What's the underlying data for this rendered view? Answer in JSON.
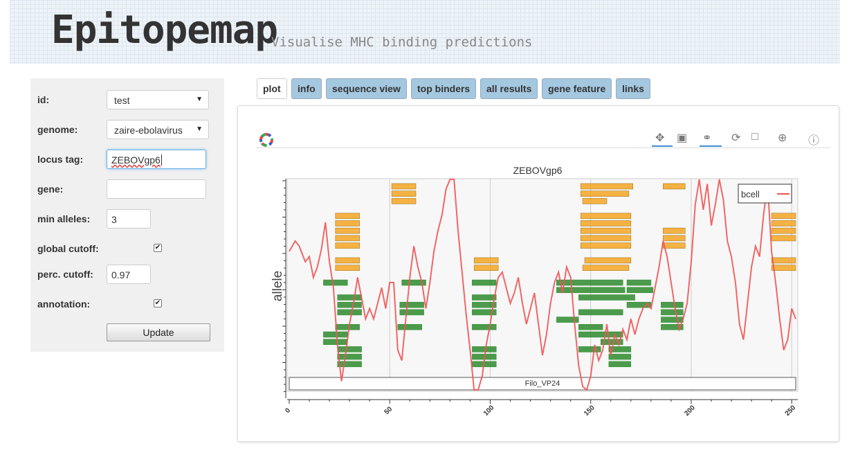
{
  "header": {
    "title": "Epitopemap",
    "subtitle": "Visualise MHC binding predictions"
  },
  "form": {
    "id_label": "id:",
    "id_value": "test",
    "genome_label": "genome:",
    "genome_value": "zaire-ebolavirus",
    "locus_label": "locus tag:",
    "locus_value": "ZEBOVgp6",
    "gene_label": "gene:",
    "gene_value": "",
    "min_alleles_label": "min alleles:",
    "min_alleles_value": "3",
    "global_cutoff_label": "global cutoff:",
    "global_cutoff_checked": true,
    "perc_cutoff_label": "perc. cutoff:",
    "perc_cutoff_value": "0.97",
    "annotation_label": "annotation:",
    "annotation_checked": true,
    "update_label": "Update"
  },
  "tabs": [
    {
      "label": "plot",
      "active": true
    },
    {
      "label": "info",
      "active": false
    },
    {
      "label": "sequence view",
      "active": false
    },
    {
      "label": "top binders",
      "active": false
    },
    {
      "label": "all results",
      "active": false
    },
    {
      "label": "gene feature",
      "active": false
    },
    {
      "label": "links",
      "active": false
    }
  ],
  "toolbar": {
    "icons": [
      "pan-icon",
      "box-zoom-icon",
      "wheel-zoom-icon",
      "reset-icon",
      "save-icon",
      "crosshair-icon",
      "help-icon"
    ],
    "active_icons": [
      "pan-icon",
      "wheel-zoom-icon"
    ]
  },
  "colors": {
    "banner": "#eef3f8",
    "tab_bg": "#a5c8e1",
    "binder_orange": "#f5a623",
    "binder_green": "#2e8b2e",
    "line_red": "#ee5555"
  },
  "chart_data": {
    "type": "line",
    "title": "ZEBOVgp6",
    "xlabel": "",
    "ylabel": "allele",
    "xlim": [
      0,
      252
    ],
    "xticks": [
      0,
      50,
      100,
      150,
      200,
      250
    ],
    "grid": true,
    "legend": {
      "position": "top-right",
      "entries": [
        "bcell"
      ]
    },
    "feature_label": "Filo_VP24",
    "series": [
      {
        "name": "bcell",
        "x": [
          0,
          3,
          5,
          8,
          10,
          12,
          14,
          16,
          18,
          20,
          22,
          24,
          26,
          28,
          30,
          32,
          34,
          36,
          38,
          40,
          42,
          44,
          46,
          48,
          50,
          52,
          54,
          56,
          58,
          60,
          62,
          64,
          66,
          68,
          70,
          72,
          74,
          76,
          78,
          80,
          82,
          84,
          86,
          88,
          90,
          92,
          94,
          96,
          98,
          100,
          102,
          104,
          106,
          108,
          110,
          112,
          114,
          116,
          118,
          120,
          122,
          124,
          126,
          128,
          130,
          132,
          134,
          136,
          138,
          140,
          142,
          144,
          146,
          148,
          150,
          152,
          154,
          156,
          158,
          160,
          162,
          164,
          166,
          168,
          170,
          172,
          174,
          176,
          178,
          180,
          182,
          184,
          186,
          188,
          190,
          192,
          194,
          196,
          198,
          200,
          202,
          204,
          206,
          208,
          210,
          212,
          214,
          216,
          218,
          220,
          222,
          224,
          226,
          228,
          230,
          232,
          234,
          236,
          238,
          240,
          242,
          244,
          246,
          248,
          250,
          252
        ],
        "y": [
          0.6,
          0.7,
          0.65,
          0.5,
          0.55,
          0.35,
          0.45,
          0.62,
          0.88,
          0.5,
          0.25,
          -0.3,
          -0.65,
          -0.4,
          -0.1,
          0.1,
          0.35,
          0.15,
          -0.05,
          0.05,
          -0.05,
          0.1,
          0.25,
          0.05,
          0.3,
          0.3,
          -0.35,
          -0.45,
          -0.05,
          0.35,
          0.65,
          0.45,
          0.3,
          0.05,
          0.3,
          0.6,
          0.8,
          0.95,
          1.2,
          1.55,
          1.35,
          0.8,
          0.4,
          0.0,
          -0.35,
          -0.75,
          -0.95,
          -0.6,
          -0.3,
          -0.1,
          0.15,
          0.35,
          0.4,
          0.25,
          0.1,
          0.2,
          0.35,
          0.1,
          -0.1,
          0.05,
          0.2,
          -0.1,
          -0.4,
          -0.2,
          0.1,
          0.3,
          0.4,
          0.2,
          0.45,
          0.35,
          -0.1,
          -0.5,
          -0.7,
          -0.9,
          -0.6,
          -0.3,
          -0.45,
          -0.35,
          -0.1,
          -0.4,
          -0.2,
          -0.3,
          -0.15,
          -0.25,
          -0.05,
          -0.2,
          -0.05,
          0.05,
          0.1,
          0.05,
          0.25,
          0.45,
          0.7,
          0.55,
          0.3,
          0.05,
          -0.15,
          -0.05,
          0.1,
          0.5,
          1.05,
          1.35,
          1.0,
          1.25,
          0.85,
          1.05,
          1.3,
          1.1,
          0.7,
          0.55,
          0.3,
          -0.1,
          -0.25,
          0.1,
          0.45,
          0.65,
          0.55,
          0.95,
          1.25,
          0.6,
          0.3,
          -0.05,
          -0.35,
          -0.25,
          0.05,
          -0.05
        ]
      }
    ],
    "binders": {
      "orange": [
        {
          "start": 23,
          "end": 35,
          "row": 5
        },
        {
          "start": 23,
          "end": 35,
          "row": 6
        },
        {
          "start": 23,
          "end": 35,
          "row": 7
        },
        {
          "start": 23,
          "end": 35,
          "row": 8
        },
        {
          "start": 23,
          "end": 35,
          "row": 9
        },
        {
          "start": 23,
          "end": 35,
          "row": 11
        },
        {
          "start": 23,
          "end": 35,
          "row": 12
        },
        {
          "start": 51,
          "end": 63,
          "row": 1
        },
        {
          "start": 51,
          "end": 63,
          "row": 2
        },
        {
          "start": 51,
          "end": 63,
          "row": 3
        },
        {
          "start": 92,
          "end": 104,
          "row": 11
        },
        {
          "start": 92,
          "end": 104,
          "row": 12
        },
        {
          "start": 145,
          "end": 171,
          "row": 1
        },
        {
          "start": 145,
          "end": 169,
          "row": 2
        },
        {
          "start": 146,
          "end": 158,
          "row": 3
        },
        {
          "start": 145,
          "end": 170,
          "row": 5
        },
        {
          "start": 145,
          "end": 170,
          "row": 6
        },
        {
          "start": 145,
          "end": 170,
          "row": 7
        },
        {
          "start": 145,
          "end": 170,
          "row": 8
        },
        {
          "start": 145,
          "end": 170,
          "row": 9
        },
        {
          "start": 147,
          "end": 170,
          "row": 11
        },
        {
          "start": 146,
          "end": 169,
          "row": 12
        },
        {
          "start": 186,
          "end": 197,
          "row": 1
        },
        {
          "start": 186,
          "end": 197,
          "row": 7
        },
        {
          "start": 186,
          "end": 197,
          "row": 8
        },
        {
          "start": 186,
          "end": 197,
          "row": 9
        },
        {
          "start": 240,
          "end": 252,
          "row": 5
        },
        {
          "start": 240,
          "end": 252,
          "row": 6
        },
        {
          "start": 240,
          "end": 252,
          "row": 7
        },
        {
          "start": 240,
          "end": 252,
          "row": 8
        },
        {
          "start": 240,
          "end": 252,
          "row": 11
        },
        {
          "start": 240,
          "end": 252,
          "row": 12
        }
      ],
      "green": [
        {
          "start": 17,
          "end": 29,
          "row": 14
        },
        {
          "start": 56,
          "end": 68,
          "row": 14
        },
        {
          "start": 91,
          "end": 103,
          "row": 14
        },
        {
          "start": 133,
          "end": 166,
          "row": 14
        },
        {
          "start": 168,
          "end": 180,
          "row": 14
        },
        {
          "start": 133,
          "end": 167,
          "row": 15
        },
        {
          "start": 168,
          "end": 181,
          "row": 15
        },
        {
          "start": 24,
          "end": 36,
          "row": 16
        },
        {
          "start": 91,
          "end": 103,
          "row": 16
        },
        {
          "start": 144,
          "end": 172,
          "row": 16
        },
        {
          "start": 24,
          "end": 36,
          "row": 17
        },
        {
          "start": 55,
          "end": 67,
          "row": 17
        },
        {
          "start": 91,
          "end": 103,
          "row": 17
        },
        {
          "start": 168,
          "end": 180,
          "row": 17
        },
        {
          "start": 185,
          "end": 196,
          "row": 17
        },
        {
          "start": 24,
          "end": 36,
          "row": 18
        },
        {
          "start": 55,
          "end": 67,
          "row": 18
        },
        {
          "start": 91,
          "end": 103,
          "row": 18
        },
        {
          "start": 144,
          "end": 166,
          "row": 18
        },
        {
          "start": 185,
          "end": 196,
          "row": 18
        },
        {
          "start": 133,
          "end": 144,
          "row": 19
        },
        {
          "start": 185,
          "end": 196,
          "row": 19
        },
        {
          "start": 54,
          "end": 66,
          "row": 20
        },
        {
          "start": 91,
          "end": 103,
          "row": 20
        },
        {
          "start": 23,
          "end": 35,
          "row": 20
        },
        {
          "start": 144,
          "end": 156,
          "row": 20
        },
        {
          "start": 185,
          "end": 196,
          "row": 20
        },
        {
          "start": 17,
          "end": 29,
          "row": 21
        },
        {
          "start": 144,
          "end": 166,
          "row": 21
        },
        {
          "start": 17,
          "end": 29,
          "row": 22
        },
        {
          "start": 155,
          "end": 166,
          "row": 22
        },
        {
          "start": 24,
          "end": 36,
          "row": 23
        },
        {
          "start": 91,
          "end": 103,
          "row": 23
        },
        {
          "start": 144,
          "end": 155,
          "row": 23
        },
        {
          "start": 159,
          "end": 170,
          "row": 23
        },
        {
          "start": 24,
          "end": 36,
          "row": 24
        },
        {
          "start": 91,
          "end": 103,
          "row": 24
        },
        {
          "start": 159,
          "end": 170,
          "row": 24
        },
        {
          "start": 24,
          "end": 36,
          "row": 25
        },
        {
          "start": 91,
          "end": 103,
          "row": 25
        },
        {
          "start": 159,
          "end": 170,
          "row": 25
        }
      ]
    }
  }
}
